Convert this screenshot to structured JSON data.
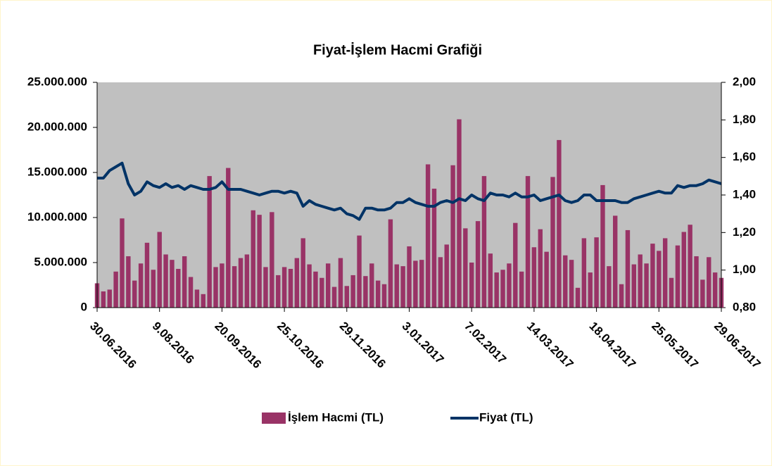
{
  "chart_data": {
    "type": "bar",
    "title": "Fiyat-İşlem  Hacmi Grafiği",
    "categories": [
      "30.06.2016",
      null,
      null,
      null,
      null,
      null,
      null,
      null,
      null,
      null,
      "9.08.2016",
      null,
      null,
      null,
      null,
      null,
      null,
      null,
      null,
      null,
      "20.09.2016",
      null,
      null,
      null,
      null,
      null,
      null,
      null,
      null,
      null,
      "25.10.2016",
      null,
      null,
      null,
      null,
      null,
      null,
      null,
      null,
      null,
      "29.11.2016",
      null,
      null,
      null,
      null,
      null,
      null,
      null,
      null,
      null,
      "3.01.2017",
      null,
      null,
      null,
      null,
      null,
      null,
      null,
      null,
      null,
      "7.02.2017",
      null,
      null,
      null,
      null,
      null,
      null,
      null,
      null,
      null,
      "14.03.2017",
      null,
      null,
      null,
      null,
      null,
      null,
      null,
      null,
      null,
      "18.04.2017",
      null,
      null,
      null,
      null,
      null,
      null,
      null,
      null,
      null,
      "25.05.2017",
      null,
      null,
      null,
      null,
      null,
      null,
      null,
      null,
      null,
      "29.06.2017"
    ],
    "series": [
      {
        "name": "İşlem Hacmi (TL)",
        "type": "bar",
        "color": "#993366",
        "values": [
          2700000,
          1800000,
          2000000,
          4000000,
          9900000,
          5700000,
          3000000,
          4900000,
          7200000,
          4200000,
          8400000,
          5900000,
          5300000,
          4300000,
          5700000,
          3400000,
          2000000,
          1500000,
          14600000,
          4500000,
          4900000,
          15500000,
          4600000,
          5500000,
          5900000,
          10800000,
          10300000,
          4500000,
          10600000,
          3600000,
          4500000,
          4300000,
          5500000,
          7700000,
          4800000,
          4000000,
          3300000,
          4900000,
          2300000,
          5500000,
          2400000,
          3600000,
          8000000,
          3500000,
          4900000,
          3000000,
          2600000,
          9800000,
          4800000,
          4600000,
          6800000,
          5200000,
          5300000,
          15900000,
          13200000,
          5600000,
          7000000,
          15800000,
          20900000,
          8800000,
          5000000,
          9600000,
          14600000,
          6000000,
          3900000,
          4200000,
          4900000,
          9400000,
          4000000,
          14600000,
          6700000,
          8700000,
          6200000,
          14500000,
          18600000,
          5800000,
          5300000,
          2200000,
          7700000,
          3900000,
          7800000,
          13600000,
          4600000,
          10200000,
          2600000,
          8600000,
          4800000,
          5900000,
          4900000,
          7100000,
          6300000,
          7700000,
          3300000,
          6900000,
          8400000,
          9200000,
          5700000,
          3100000,
          5600000,
          3900000,
          3300000
        ]
      },
      {
        "name": "Fiyat (TL)",
        "type": "line",
        "axis": "y2",
        "color": "#003366",
        "values": [
          1.49,
          1.49,
          1.53,
          1.55,
          1.57,
          1.46,
          1.4,
          1.42,
          1.47,
          1.45,
          1.44,
          1.46,
          1.44,
          1.45,
          1.43,
          1.45,
          1.44,
          1.43,
          1.43,
          1.44,
          1.47,
          1.43,
          1.43,
          1.43,
          1.42,
          1.41,
          1.4,
          1.41,
          1.42,
          1.42,
          1.41,
          1.42,
          1.41,
          1.34,
          1.37,
          1.35,
          1.34,
          1.33,
          1.32,
          1.33,
          1.3,
          1.29,
          1.27,
          1.33,
          1.33,
          1.32,
          1.32,
          1.33,
          1.36,
          1.36,
          1.38,
          1.36,
          1.35,
          1.34,
          1.34,
          1.36,
          1.37,
          1.36,
          1.38,
          1.37,
          1.4,
          1.38,
          1.37,
          1.41,
          1.4,
          1.4,
          1.39,
          1.41,
          1.39,
          1.39,
          1.4,
          1.37,
          1.38,
          1.39,
          1.4,
          1.37,
          1.36,
          1.37,
          1.4,
          1.4,
          1.37,
          1.37,
          1.37,
          1.37,
          1.36,
          1.36,
          1.38,
          1.39,
          1.4,
          1.41,
          1.42,
          1.41,
          1.41,
          1.45,
          1.44,
          1.45,
          1.45,
          1.46,
          1.48,
          1.47,
          1.46
        ]
      }
    ],
    "ylim": [
      0,
      25000000
    ],
    "yticks": [
      0,
      {
        "value": 5000000,
        "label": "5.000.000"
      },
      {
        "value": 10000000,
        "label": "10.000.000"
      },
      {
        "value": 15000000,
        "label": "15.000.000"
      },
      {
        "value": 20000000,
        "label": "20.000.000"
      },
      {
        "value": 25000000,
        "label": "25.000.000"
      }
    ],
    "y2lim": [
      0.8,
      2.0
    ],
    "y2ticks": [
      {
        "value": 0.8,
        "label": "0,80"
      },
      {
        "value": 1.0,
        "label": "1,00"
      },
      {
        "value": 1.2,
        "label": "1,20"
      },
      {
        "value": 1.4,
        "label": "1,40"
      },
      {
        "value": 1.6,
        "label": "1,60"
      },
      {
        "value": 1.8,
        "label": "1,80"
      },
      {
        "value": 2.0,
        "label": "2,00"
      }
    ],
    "legend": "bottom"
  }
}
